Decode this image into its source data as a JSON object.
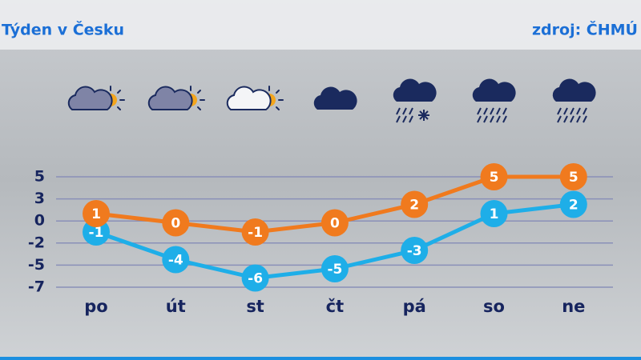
{
  "chart_data": {
    "type": "line",
    "title": "Týden v Česku",
    "source": "zdroj: ČHMÚ",
    "categories": [
      "po",
      "út",
      "st",
      "čt",
      "pá",
      "so",
      "ne"
    ],
    "series": [
      {
        "color": "#1eaee8",
        "values": [
          -1,
          -4,
          -6,
          -5,
          -3,
          1,
          2
        ]
      },
      {
        "color": "#f07a1e",
        "values": [
          1,
          0,
          -1,
          0,
          2,
          5,
          5
        ]
      }
    ],
    "ylim": [
      -7,
      5
    ],
    "yticks": [
      5,
      {
        "value": 2.6,
        "label": "3"
      },
      {
        "value": 0.2,
        "label": "0"
      },
      {
        "value": -2.2,
        "label": "-2"
      },
      {
        "value": -4.6,
        "label": "-5"
      },
      -7
    ],
    "grid": true
  }
}
